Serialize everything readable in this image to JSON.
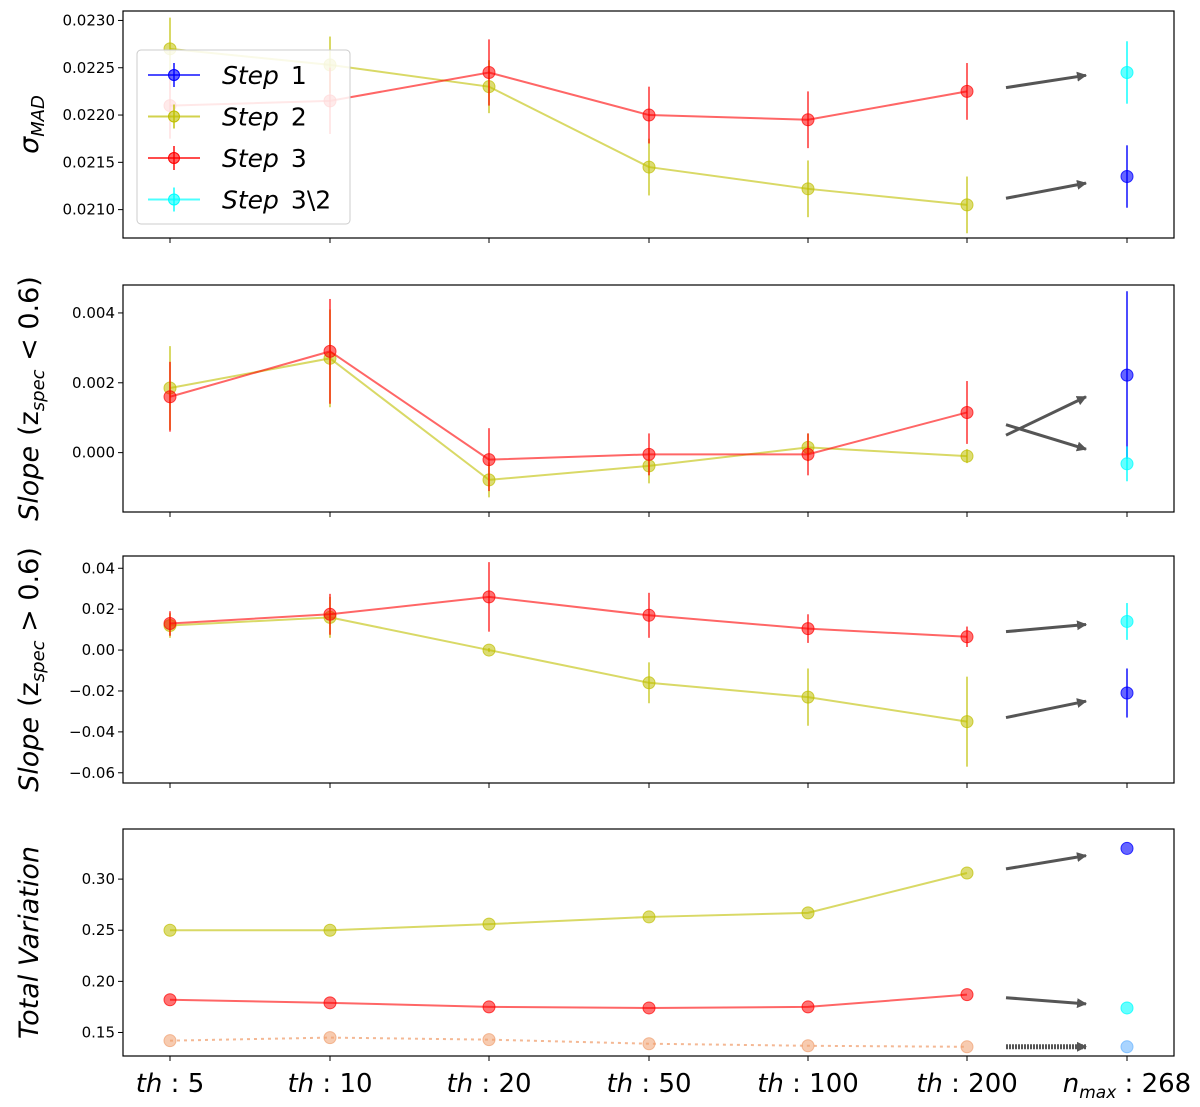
{
  "chart_data": [
    {
      "type": "line",
      "ylabel": "σ_MAD",
      "ylabel_main": "σ",
      "ylabel_sub": "MAD",
      "ylim": [
        0.0207,
        0.0231
      ],
      "yticks": [
        0.021,
        0.0215,
        0.022,
        0.0225,
        0.023
      ],
      "yticklabels": [
        "0.0210",
        "0.0215",
        "0.0220",
        "0.0225",
        "0.0230"
      ],
      "legend": {
        "position": "upper-left",
        "entries": [
          {
            "prefix": "Step",
            "suffix": "1",
            "color": "#0000ff"
          },
          {
            "prefix": "Step",
            "suffix": "2",
            "color": "#bfbf00"
          },
          {
            "prefix": "Step",
            "suffix": "3",
            "color": "#ff0000"
          },
          {
            "prefix": "Step",
            "suffix": "3\\2",
            "color": "#00ffff"
          }
        ]
      },
      "series": [
        {
          "name": "Step 2",
          "color": "#bfbf00",
          "values": [
            0.0227,
            0.02253,
            0.0223,
            0.02145,
            0.02122,
            0.02105
          ],
          "errors": [
            0.00033,
            0.0003,
            0.00028,
            0.0003,
            0.0003,
            0.0003
          ]
        },
        {
          "name": "Step 3",
          "color": "#ff0000",
          "values": [
            0.0221,
            0.02215,
            0.02245,
            0.022,
            0.02195,
            0.02225
          ],
          "errors": [
            0.00035,
            0.00035,
            0.00035,
            0.0003,
            0.0003,
            0.0003
          ]
        }
      ],
      "right_points": [
        {
          "name": "Step 3\\2",
          "color": "#00ffff",
          "value": 0.02245,
          "error": 0.00033
        },
        {
          "name": "Step 1",
          "color": "#0000ff",
          "value": 0.02135,
          "error": 0.00033
        }
      ],
      "arrows": [
        {
          "from": 0.02229,
          "to": 0.02242
        },
        {
          "from": 0.02112,
          "to": 0.02128
        }
      ]
    },
    {
      "type": "line",
      "ylabel": "Slope (z_spec < 0.6)",
      "ylabel_main": "Slope",
      "ylabel_pre": "(z",
      "ylabel_sub": "spec",
      "ylabel_post": " < 0.6)",
      "ylim": [
        -0.0017,
        0.0048
      ],
      "yticks": [
        0.0,
        0.002,
        0.004
      ],
      "yticklabels": [
        "0.000",
        "0.002",
        "0.004"
      ],
      "series": [
        {
          "name": "Step 2",
          "color": "#bfbf00",
          "values": [
            0.00185,
            0.0027,
            -0.00078,
            -0.00038,
            0.00015,
            -0.0001
          ],
          "errors": [
            0.0012,
            0.0014,
            0.0005,
            0.0005,
            0.0004,
            0.0002
          ]
        },
        {
          "name": "Step 3",
          "color": "#ff0000",
          "values": [
            0.0016,
            0.0029,
            -0.0002,
            -5e-05,
            -5e-05,
            0.00115
          ],
          "errors": [
            0.001,
            0.0015,
            0.0009,
            0.0006,
            0.0006,
            0.0009
          ]
        }
      ],
      "right_points": [
        {
          "name": "Step 1",
          "color": "#0000ff",
          "value": 0.00222,
          "error": 0.0024
        },
        {
          "name": "Step 3\\2",
          "color": "#00ffff",
          "value": -0.00032,
          "error": 0.0005
        }
      ],
      "arrows": [
        {
          "from": 0.0005,
          "to": 0.0016
        },
        {
          "from": 0.0008,
          "to": 0.0001
        }
      ]
    },
    {
      "type": "line",
      "ylabel": "Slope (z_spec > 0.6)",
      "ylabel_main": "Slope",
      "ylabel_pre": "(z",
      "ylabel_sub": "spec",
      "ylabel_post": " > 0.6)",
      "ylim": [
        -0.065,
        0.046
      ],
      "yticks": [
        -0.06,
        -0.04,
        -0.02,
        0.0,
        0.02,
        0.04
      ],
      "yticklabels": [
        "−0.06",
        "−0.04",
        "−0.02",
        "0.00",
        "0.02",
        "0.04"
      ],
      "series": [
        {
          "name": "Step 2",
          "color": "#bfbf00",
          "values": [
            0.012,
            0.016,
            0.0,
            -0.016,
            -0.023,
            -0.035
          ],
          "errors": [
            0.006,
            0.01,
            0.001,
            0.01,
            0.014,
            0.022
          ]
        },
        {
          "name": "Step 3",
          "color": "#ff0000",
          "values": [
            0.013,
            0.0175,
            0.026,
            0.017,
            0.0105,
            0.0065
          ],
          "errors": [
            0.006,
            0.01,
            0.017,
            0.011,
            0.007,
            0.005
          ]
        }
      ],
      "right_points": [
        {
          "name": "Step 3\\2",
          "color": "#00ffff",
          "value": 0.014,
          "error": 0.009
        },
        {
          "name": "Step 1",
          "color": "#0000ff",
          "value": -0.021,
          "error": 0.012
        }
      ],
      "arrows": [
        {
          "from": 0.009,
          "to": 0.0125
        },
        {
          "from": -0.033,
          "to": -0.025
        }
      ]
    },
    {
      "type": "line",
      "ylabel": "Total Variation",
      "ylim": [
        0.127,
        0.349
      ],
      "yticks": [
        0.15,
        0.2,
        0.25,
        0.3
      ],
      "yticklabels": [
        "0.15",
        "0.20",
        "0.25",
        "0.30"
      ],
      "series": [
        {
          "name": "Step 2",
          "color": "#bfbf00",
          "values": [
            0.25,
            0.25,
            0.256,
            0.263,
            0.267,
            0.306
          ],
          "errors": [
            0,
            0,
            0,
            0,
            0,
            0
          ]
        },
        {
          "name": "Step 3",
          "color": "#ff0000",
          "values": [
            0.182,
            0.179,
            0.175,
            0.174,
            0.175,
            0.187
          ],
          "errors": [
            0,
            0,
            0,
            0,
            0,
            0
          ]
        },
        {
          "name": "dotted",
          "color": "#f0a070",
          "dashed": true,
          "values": [
            0.142,
            0.145,
            0.143,
            0.139,
            0.137,
            0.136
          ],
          "errors": [
            0,
            0,
            0,
            0,
            0,
            0
          ]
        }
      ],
      "right_points": [
        {
          "name": "Step 1",
          "color": "#0000ff",
          "value": 0.33,
          "error": 0
        },
        {
          "name": "Step 3\\2",
          "color": "#00ffff",
          "value": 0.174,
          "error": 0
        },
        {
          "name": "dotted-end",
          "color": "#70b8ff",
          "value": 0.136,
          "error": 0
        }
      ],
      "arrows": [
        {
          "from": 0.31,
          "to": 0.323
        },
        {
          "from": 0.184,
          "to": 0.178
        },
        {
          "from": 0.136,
          "to": 0.136,
          "hatched": true
        }
      ]
    }
  ],
  "x_categories": [
    {
      "main": "th",
      "sub": "",
      "rest": " : 5"
    },
    {
      "main": "th",
      "sub": "",
      "rest": " : 10"
    },
    {
      "main": "th",
      "sub": "",
      "rest": " : 20"
    },
    {
      "main": "th",
      "sub": "",
      "rest": " : 50"
    },
    {
      "main": "th",
      "sub": "",
      "rest": " : 100"
    },
    {
      "main": "th",
      "sub": "",
      "rest": " : 200"
    },
    {
      "main": "n",
      "sub": "max",
      "rest": " : 268"
    }
  ]
}
